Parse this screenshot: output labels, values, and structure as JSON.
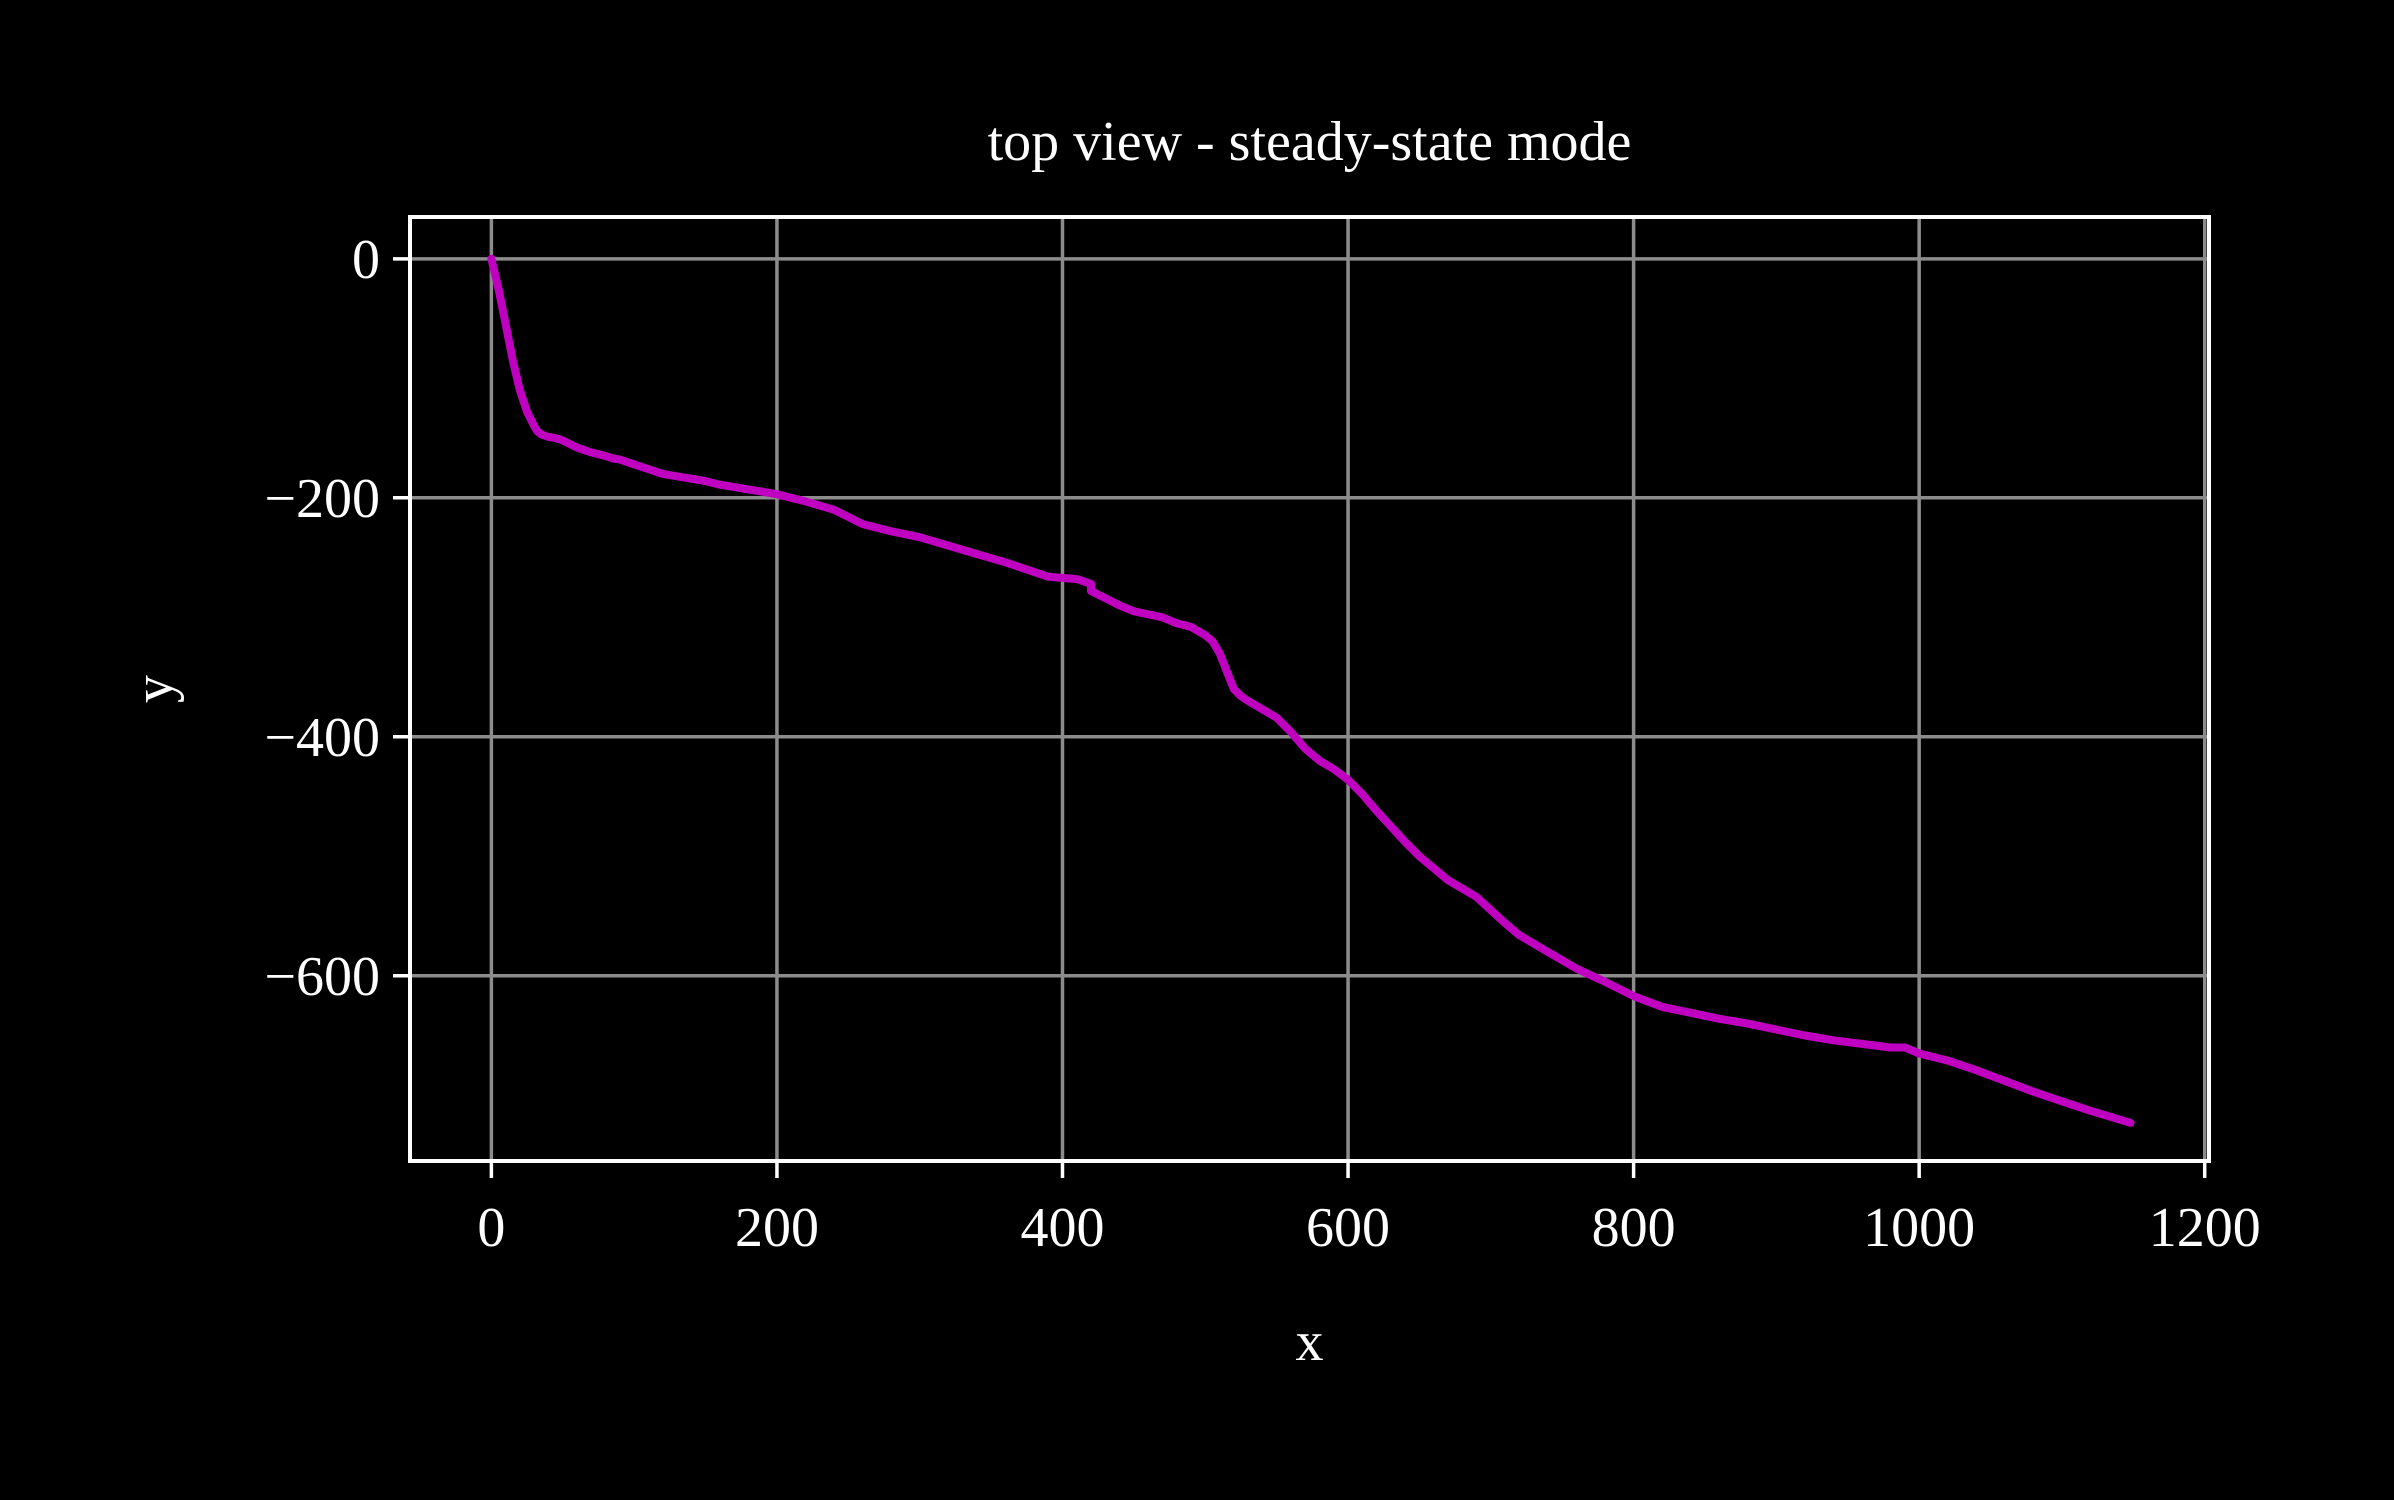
{
  "chart_data": {
    "type": "line",
    "title": "top view - steady-state mode",
    "xlabel": "x",
    "ylabel": "y",
    "xlim": [
      -57,
      1203
    ],
    "ylim": [
      -755,
      35
    ],
    "xticks": [
      0,
      200,
      400,
      600,
      800,
      1000,
      1200
    ],
    "xtick_labels": [
      "0",
      "200",
      "400",
      "600",
      "800",
      "1000",
      "1200"
    ],
    "yticks": [
      0,
      -200,
      -400,
      -600
    ],
    "ytick_labels": [
      "0",
      "−200",
      "−400",
      "−600"
    ],
    "grid": true,
    "legend": "none",
    "colors": {
      "background": "#000000",
      "axes": "#ffffff",
      "grid": "#8c8c8c",
      "line": "#c000c0"
    },
    "series": [
      {
        "x": [
          0,
          5,
          10,
          15,
          20,
          25,
          30,
          32,
          35,
          40,
          45,
          50,
          55,
          60,
          70,
          80,
          85,
          90,
          100,
          110,
          120,
          140,
          150,
          160,
          180,
          200,
          220,
          240,
          250,
          260,
          280,
          300,
          320,
          340,
          360,
          380,
          390,
          400,
          410,
          420,
          420,
          430,
          440,
          450,
          470,
          480,
          490,
          500,
          505,
          510,
          515,
          520,
          525,
          530,
          550,
          560,
          570,
          580,
          590,
          600,
          610,
          620,
          630,
          640,
          650,
          660,
          670,
          680,
          690,
          700,
          710,
          720,
          740,
          760,
          780,
          800,
          820,
          840,
          860,
          880,
          900,
          920,
          940,
          960,
          980,
          990,
          1000,
          1020,
          1040,
          1060,
          1080,
          1100,
          1120,
          1148
        ],
        "y": [
          0,
          -25,
          -55,
          -85,
          -110,
          -128,
          -140,
          -144,
          -147,
          -149,
          -150,
          -152,
          -155,
          -158,
          -162,
          -165,
          -167,
          -168,
          -172,
          -176,
          -180,
          -184,
          -186,
          -189,
          -193,
          -197,
          -203,
          -210,
          -216,
          -222,
          -228,
          -233,
          -240,
          -247,
          -254,
          -262,
          -266,
          -267,
          -268,
          -272,
          -278,
          -284,
          -290,
          -295,
          -300,
          -305,
          -308,
          -315,
          -320,
          -330,
          -345,
          -360,
          -366,
          -370,
          -384,
          -396,
          -410,
          -420,
          -427,
          -436,
          -448,
          -462,
          -475,
          -488,
          -500,
          -510,
          -520,
          -527,
          -534,
          -545,
          -556,
          -566,
          -580,
          -594,
          -605,
          -617,
          -626,
          -631,
          -636,
          -640,
          -645,
          -650,
          -654,
          -657,
          -660,
          -660,
          -665,
          -671,
          -679,
          -688,
          -697,
          -705,
          -713,
          -723
        ]
      }
    ]
  }
}
